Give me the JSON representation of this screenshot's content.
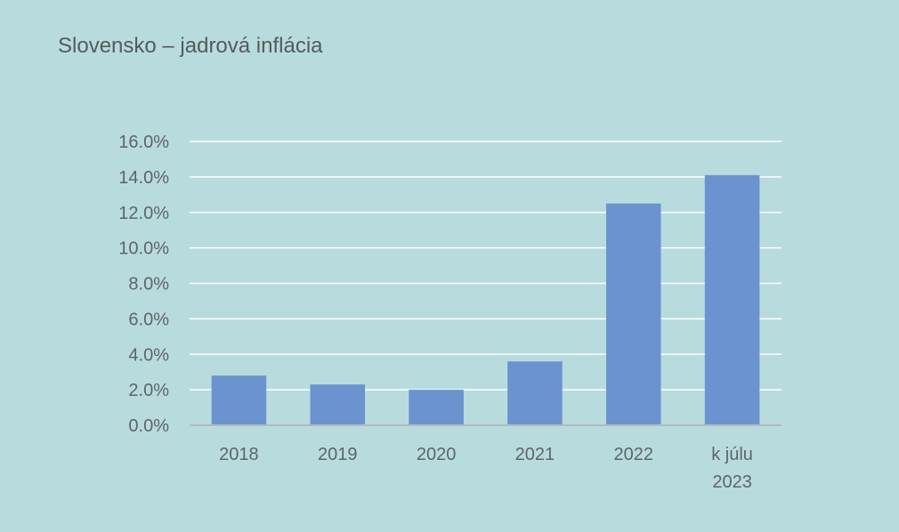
{
  "chart_data": {
    "type": "bar",
    "title": "Slovensko – jadrová inflácia",
    "categories": [
      "2018",
      "2019",
      "2020",
      "2021",
      "2022",
      "k júlu 2023"
    ],
    "category_lines": [
      [
        "2018"
      ],
      [
        "2019"
      ],
      [
        "2020"
      ],
      [
        "2021"
      ],
      [
        "2022"
      ],
      [
        "k júlu",
        "2023"
      ]
    ],
    "values": [
      2.8,
      2.3,
      2.0,
      3.6,
      12.5,
      14.1
    ],
    "ylim": [
      0,
      16
    ],
    "yticks": [
      0,
      2,
      4,
      6,
      8,
      10,
      12,
      14,
      16
    ],
    "ytick_labels": [
      "0.0%",
      "2.0%",
      "4.0%",
      "6.0%",
      "8.0%",
      "10.0%",
      "12.0%",
      "14.0%",
      "16.0%"
    ],
    "xlabel": "",
    "ylabel": "",
    "grid": true,
    "legend": false,
    "colors": {
      "bar": "#6a93cf",
      "background": "#b8dcdd",
      "grid": "#ffffff",
      "axis": "#b4b8ba",
      "text": "#5f6468"
    }
  }
}
